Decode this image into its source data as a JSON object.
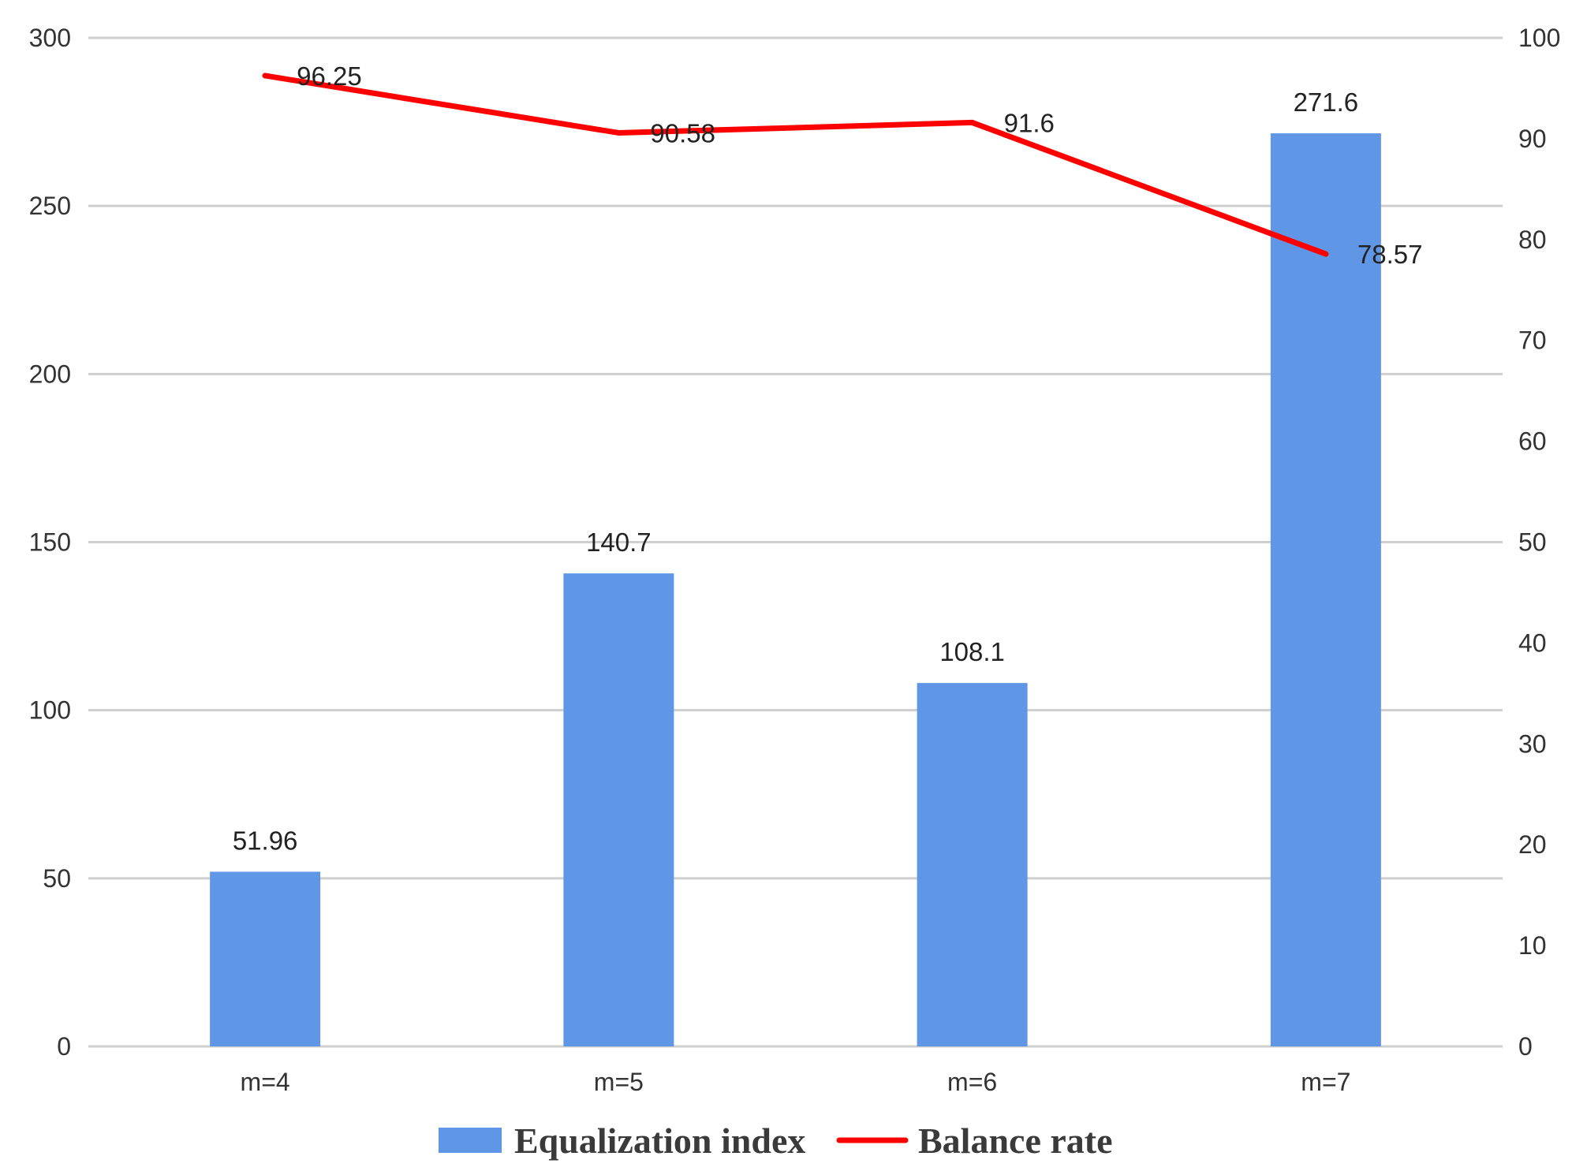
{
  "chart_data": {
    "type": "bar",
    "categories": [
      "m=4",
      "m=5",
      "m=6",
      "m=7"
    ],
    "series": [
      {
        "name": "Equalization index",
        "type": "bar",
        "axis": "left",
        "color": "#6096e6",
        "values": [
          51.96,
          140.7,
          108.1,
          271.6
        ],
        "labels": [
          "51.96",
          "140.7",
          "108.1",
          "271.6"
        ]
      },
      {
        "name": "Balance rate",
        "type": "line",
        "axis": "right",
        "color": "#ff0000",
        "values": [
          96.25,
          90.58,
          91.6,
          78.57
        ],
        "labels": [
          "96.25",
          "90.58",
          "91.6",
          "78.57"
        ]
      }
    ],
    "y_left": {
      "range": [
        0,
        300
      ],
      "ticks": [
        "0",
        "50",
        "100",
        "150",
        "200",
        "250",
        "300"
      ]
    },
    "y_right": {
      "range": [
        0,
        100
      ],
      "ticks": [
        "0",
        "10",
        "20",
        "30",
        "40",
        "50",
        "60",
        "70",
        "80",
        "90",
        "100"
      ]
    },
    "grid": true,
    "legend": "bottom",
    "title": "",
    "xlabel": "",
    "ylabel": ""
  }
}
